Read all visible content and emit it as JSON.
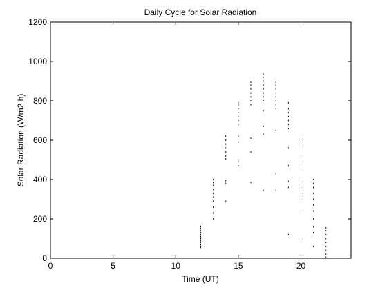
{
  "chart_data": {
    "type": "scatter",
    "title": "Daily Cycle for Solar Radiation",
    "xlabel": "Time (UT)",
    "ylabel": "Solar Radiation (W/m2 h)",
    "xlim": [
      0,
      24
    ],
    "ylim": [
      0,
      1200
    ],
    "xticks": [
      0,
      5,
      10,
      15,
      20
    ],
    "yticks": [
      0,
      200,
      400,
      600,
      800,
      1000,
      1200
    ],
    "grid": false,
    "legend": "none",
    "marker_color": "#000000",
    "clusters": [
      {
        "x": 12,
        "y": [
          55,
          60,
          70,
          80,
          90,
          100,
          110,
          120,
          130,
          140,
          150,
          160
        ]
      },
      {
        "x": 13,
        "y": [
          200,
          230,
          260,
          290,
          310,
          330,
          350,
          370,
          385,
          400
        ]
      },
      {
        "x": 14,
        "y": [
          290,
          380,
          395,
          505,
          520,
          540,
          560,
          580,
          600,
          620
        ]
      },
      {
        "x": 15,
        "y": [
          470,
          490,
          500,
          590,
          620,
          680,
          700,
          720,
          740,
          760,
          780,
          790
        ]
      },
      {
        "x": 16,
        "y": [
          385,
          540,
          610,
          780,
          800,
          820,
          840,
          860,
          880,
          895
        ]
      },
      {
        "x": 17,
        "y": [
          345,
          630,
          670,
          750,
          800,
          820,
          840,
          860,
          880,
          900,
          920,
          935
        ]
      },
      {
        "x": 18,
        "y": [
          345,
          430,
          650,
          760,
          780,
          800,
          820,
          840,
          860,
          880,
          895
        ]
      },
      {
        "x": 19,
        "y": [
          120,
          360,
          390,
          470,
          560,
          660,
          680,
          700,
          720,
          740,
          760,
          790
        ]
      },
      {
        "x": 20,
        "y": [
          100,
          230,
          290,
          330,
          370,
          410,
          450,
          490,
          520,
          560,
          580,
          600,
          615
        ]
      },
      {
        "x": 21,
        "y": [
          60,
          130,
          160,
          200,
          240,
          270,
          300,
          330,
          360,
          380,
          400
        ]
      },
      {
        "x": 22,
        "y": [
          5,
          20,
          40,
          60,
          80,
          100,
          120,
          140,
          155
        ]
      }
    ]
  }
}
